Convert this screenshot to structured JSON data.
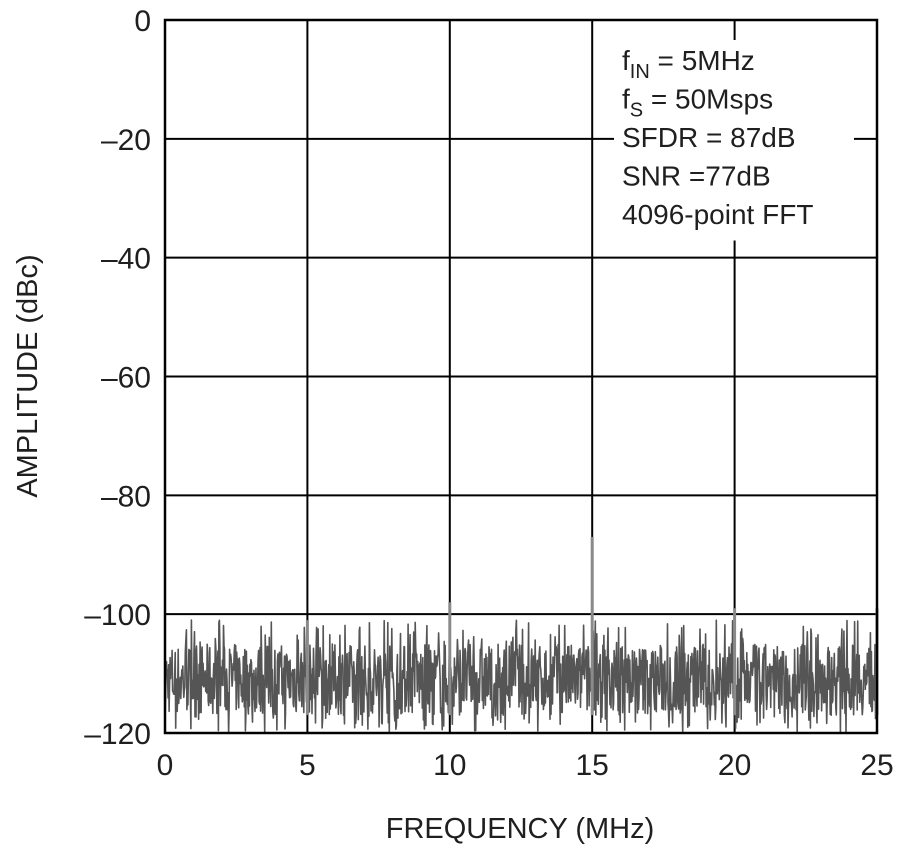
{
  "chart_data": {
    "type": "line",
    "xlabel": "FREQUENCY (MHz)",
    "ylabel": "AMPLITUDE (dBc)",
    "xlim": [
      0,
      25
    ],
    "ylim": [
      -120,
      0
    ],
    "grid": true,
    "x_ticks": [
      {
        "value": 0,
        "label": "0"
      },
      {
        "value": 5,
        "label": "5"
      },
      {
        "value": 10,
        "label": "10"
      },
      {
        "value": 15,
        "label": "15"
      },
      {
        "value": 20,
        "label": "20"
      },
      {
        "value": 25,
        "label": "25"
      }
    ],
    "y_ticks": [
      {
        "value": 0,
        "label": "0"
      },
      {
        "value": -20,
        "label": "–20"
      },
      {
        "value": -40,
        "label": "–40"
      },
      {
        "value": -60,
        "label": "–60"
      },
      {
        "value": -80,
        "label": "–80"
      },
      {
        "value": -100,
        "label": "–100"
      },
      {
        "value": -120,
        "label": "–120"
      }
    ],
    "annotations": [
      {
        "main": "f",
        "sub": "IN",
        "rest": " = 5MHz"
      },
      {
        "main": "f",
        "sub": "S",
        "rest": " = 50Msps"
      },
      {
        "main": "SFDR = 87dB",
        "sub": "",
        "rest": ""
      },
      {
        "main": "SNR =77dB",
        "sub": "",
        "rest": ""
      },
      {
        "main": "4096-point FFT",
        "sub": "",
        "rest": ""
      }
    ],
    "noise_floor": {
      "top": -101,
      "bottom": -120,
      "typical_band": [
        -117,
        -105
      ]
    },
    "spurs": [
      {
        "x": 5.0,
        "y": -101
      },
      {
        "x": 10.0,
        "y": -98
      },
      {
        "x": 15.0,
        "y": -87
      },
      {
        "x": 20.0,
        "y": -99
      },
      {
        "x": 25.0,
        "y": -99
      }
    ],
    "trace_color": "#555555",
    "grid_color": "#000000"
  }
}
